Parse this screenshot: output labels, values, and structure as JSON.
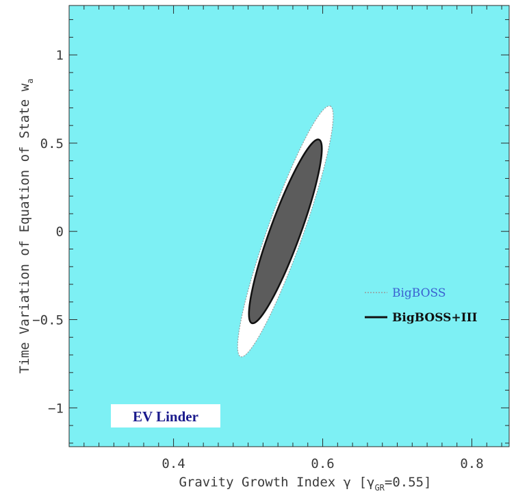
{
  "chart_data": {
    "type": "contour",
    "xlabel": "Gravity Growth Index γ [γ_GR=0.55]",
    "xlabel_main": "Gravity Growth Index γ [γ",
    "xlabel_sub": "GR",
    "xlabel_tail": "=0.55]",
    "ylabel": "Time Variation of Equation of State w_a",
    "ylabel_main": "Time Variation of Equation of State w",
    "ylabel_sub": "a",
    "xlim": [
      0.26,
      0.85
    ],
    "ylim": [
      -1.22,
      1.28
    ],
    "xticks": [
      0.4,
      0.6,
      0.8
    ],
    "xtick_labels": [
      "0.4",
      "0.6",
      "0.8"
    ],
    "yticks": [
      -1,
      -0.5,
      0,
      0.5,
      1
    ],
    "ytick_labels": [
      "−1",
      "−0.5",
      "0",
      "0.5",
      "1"
    ],
    "background_color": "#7df0f4",
    "series": [
      {
        "name": "BigBOSS",
        "center": [
          0.55,
          0.0
        ],
        "extent_x": [
          0.49,
          0.61
        ],
        "extent_y": [
          -0.71,
          0.71
        ],
        "fill": "#ffffff",
        "line_color": "#9a9a9a",
        "line_style": "dotted",
        "legend_color": "#3a5fd0"
      },
      {
        "name": "BigBOSS+III",
        "center": [
          0.55,
          0.0
        ],
        "extent_x": [
          0.505,
          0.595
        ],
        "extent_y": [
          -0.52,
          0.52
        ],
        "fill": "#5c5c5c",
        "line_color": "#111111",
        "line_style": "solid",
        "legend_color": "#111111"
      }
    ],
    "legend_position": "center-right",
    "annotation": "EV Linder"
  }
}
